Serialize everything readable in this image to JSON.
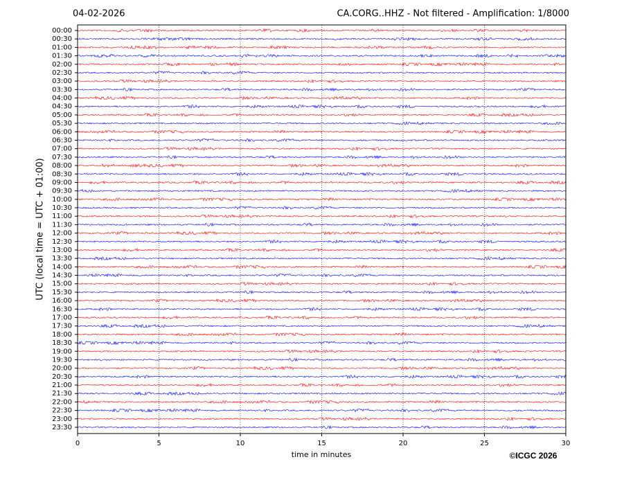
{
  "chart_data": {
    "type": "helicorder",
    "date": "04-02-2026",
    "title": "CA.CORG..HHZ - Not filtered - Amplification: 1/8000",
    "y_label": "UTC (local time = UTC + 01:00)",
    "x_label": "time in minutes",
    "copyright": "©ICGC 2026",
    "categories": [
      "00:00",
      "00:30",
      "01:00",
      "01:30",
      "02:00",
      "02:30",
      "03:00",
      "03:30",
      "04:00",
      "04:30",
      "05:00",
      "05:30",
      "06:00",
      "06:30",
      "07:00",
      "07:30",
      "08:00",
      "08:30",
      "09:00",
      "09:30",
      "10:00",
      "10:30",
      "11:00",
      "11:30",
      "12:00",
      "12:30",
      "13:00",
      "13:30",
      "14:00",
      "14:30",
      "15:00",
      "15:30",
      "16:00",
      "16:30",
      "17:00",
      "17:30",
      "18:00",
      "18:30",
      "19:00",
      "19:30",
      "20:00",
      "20:30",
      "21:00",
      "21:30",
      "22:00",
      "22:30",
      "23:00",
      "23:30"
    ],
    "trace_colors": [
      "#ff0000",
      "#0000ff"
    ],
    "xlim": [
      0,
      30
    ],
    "xticks": [
      0,
      5,
      10,
      15,
      20,
      25,
      30
    ],
    "grid": true
  }
}
